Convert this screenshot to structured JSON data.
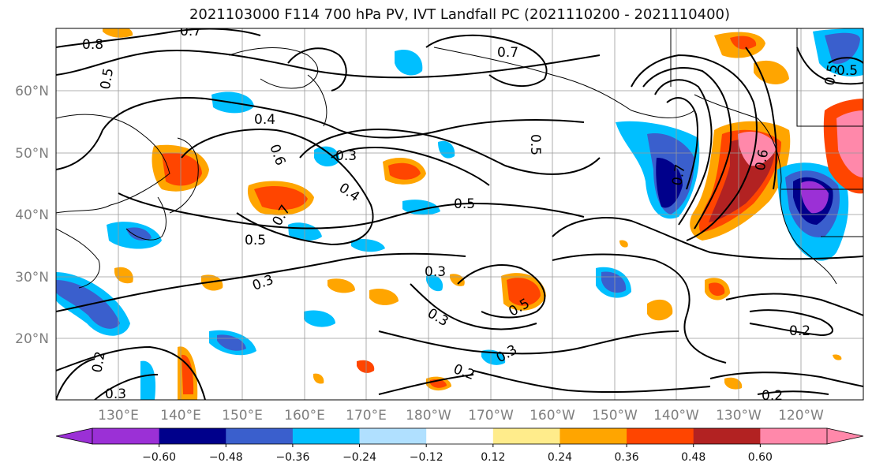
{
  "title": "2021103000 F114 700 hPa PV, IVT Landfall PC (2021110200 - 2021110400)",
  "lat_labels": [
    "60°N",
    "50°N",
    "40°N",
    "30°N",
    "20°N"
  ],
  "lon_labels": [
    "130°E",
    "140°E",
    "150°E",
    "160°E",
    "170°E",
    "180°W",
    "170°W",
    "160°W",
    "150°W",
    "140°W",
    "130°W",
    "120°W"
  ],
  "colorbar": {
    "colors": [
      "#9b30d6",
      "#00008b",
      "#3a5fcd",
      "#00bfff",
      "#b0e0ff",
      "#ffffff",
      "#ffec8b",
      "#ffa500",
      "#ff4500",
      "#b22222",
      "#ff88aa"
    ],
    "tick_labels": [
      "−0.60",
      "−0.48",
      "−0.36",
      "−0.24",
      "−0.12",
      "0.12",
      "0.24",
      "0.36",
      "0.48",
      "0.60"
    ]
  },
  "contour_labels": [
    "0.8",
    "0.7",
    "0.5",
    "0.4",
    "0.6",
    "0.3",
    "0.4",
    "0.5",
    "0.7",
    "0.5",
    "0.5",
    "0.4",
    "0.3",
    "0.3",
    "0.5",
    "0.3",
    "0.2",
    "0.2",
    "0.2",
    "0.3",
    "0.2",
    "0.7",
    "0.6",
    "0.5",
    "0.5",
    "0.7"
  ]
}
